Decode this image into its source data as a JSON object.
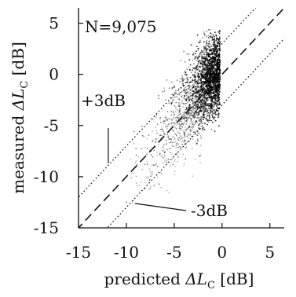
{
  "chart_data": {
    "type": "scatter",
    "title": "",
    "annotation_n": "N=9,075",
    "xlabel": {
      "prefix": "predicted ",
      "symbol": "ΔL",
      "sub": "C",
      "suffix": " [dB]"
    },
    "ylabel": {
      "prefix": "measured ",
      "symbol": "ΔL",
      "sub": "C",
      "suffix": " [dB]"
    },
    "xlim": [
      -15,
      6.5
    ],
    "ylim": [
      -15,
      6.5
    ],
    "xticks": [
      -15,
      -10,
      -5,
      0,
      5
    ],
    "yticks": [
      -15,
      -10,
      -5,
      0,
      5
    ],
    "xtick_labels": [
      "-15",
      "-10",
      "-5",
      "0",
      "5"
    ],
    "ytick_labels": [
      "-15",
      "-10",
      "-5",
      "0",
      "5"
    ],
    "reference_lines": [
      {
        "label": "",
        "offset": 0,
        "style": "dashed"
      },
      {
        "label": "+3dB",
        "offset": 3,
        "style": "dotted"
      },
      {
        "label": "-3dB",
        "offset": -3,
        "style": "dotted"
      }
    ],
    "point_count": 9075,
    "point_cloud": {
      "x_range": [
        -12,
        0
      ],
      "y_range": [
        -13,
        4.5
      ],
      "dense_region": {
        "x": [
          -3,
          0
        ],
        "y": [
          -5,
          3
        ]
      }
    },
    "grid": false,
    "legend": "none"
  }
}
